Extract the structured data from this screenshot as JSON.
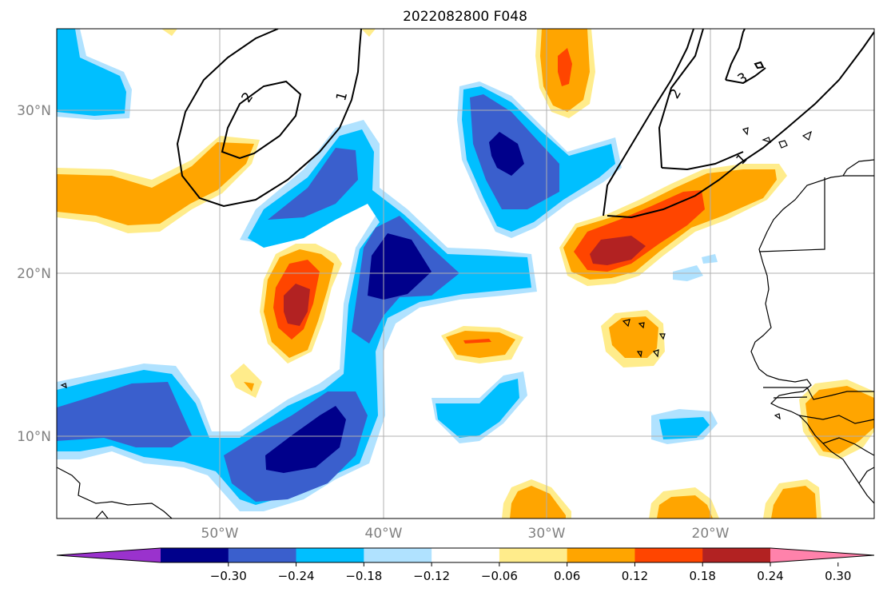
{
  "title": "2022082800 F048",
  "lat_labels": [
    "30°N",
    "20°N",
    "10°N"
  ],
  "lon_labels": [
    "50°W",
    "40°W",
    "30°W",
    "20°W"
  ],
  "contour_labels": [
    "2",
    "1",
    "2",
    "3",
    "1"
  ],
  "colorbar": {
    "tick_labels": [
      "−0.30",
      "−0.24",
      "−0.18",
      "−0.12",
      "−0.06",
      "0.06",
      "0.12",
      "0.18",
      "0.24",
      "0.30"
    ],
    "colors": [
      "#9a32cd",
      "#00008b",
      "#3a5fcd",
      "#00bfff",
      "#b0e2ff",
      "#ffffff",
      "#ffec8b",
      "#ffa500",
      "#ff4500",
      "#b22222",
      "#ff82ab"
    ]
  },
  "palette": {
    "c_m030": "#00008b",
    "c_m024": "#3a5fcd",
    "c_m018": "#00bfff",
    "c_m012": "#b0e2ff",
    "c_p006": "#ffec8b",
    "c_p012": "#ffa500",
    "c_p018": "#ff4500",
    "c_p024": "#b22222"
  }
}
